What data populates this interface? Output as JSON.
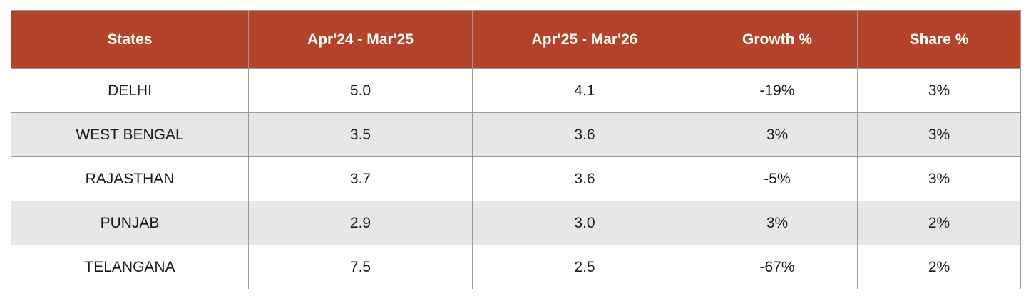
{
  "table": {
    "headers": [
      "States",
      "Apr'24 - Mar'25",
      "Apr'25 - Mar'26",
      "Growth %",
      "Share %"
    ],
    "rows": [
      [
        "DELHI",
        "5.0",
        "4.1",
        "-19%",
        "3%"
      ],
      [
        "WEST BENGAL",
        "3.5",
        "3.6",
        "3%",
        "3%"
      ],
      [
        "RAJASTHAN",
        "3.7",
        "3.6",
        "-5%",
        "3%"
      ],
      [
        "PUNJAB",
        "2.9",
        "3.0",
        "3%",
        "2%"
      ],
      [
        "TELANGANA",
        "7.5",
        "2.5",
        "-67%",
        "2%"
      ]
    ]
  }
}
